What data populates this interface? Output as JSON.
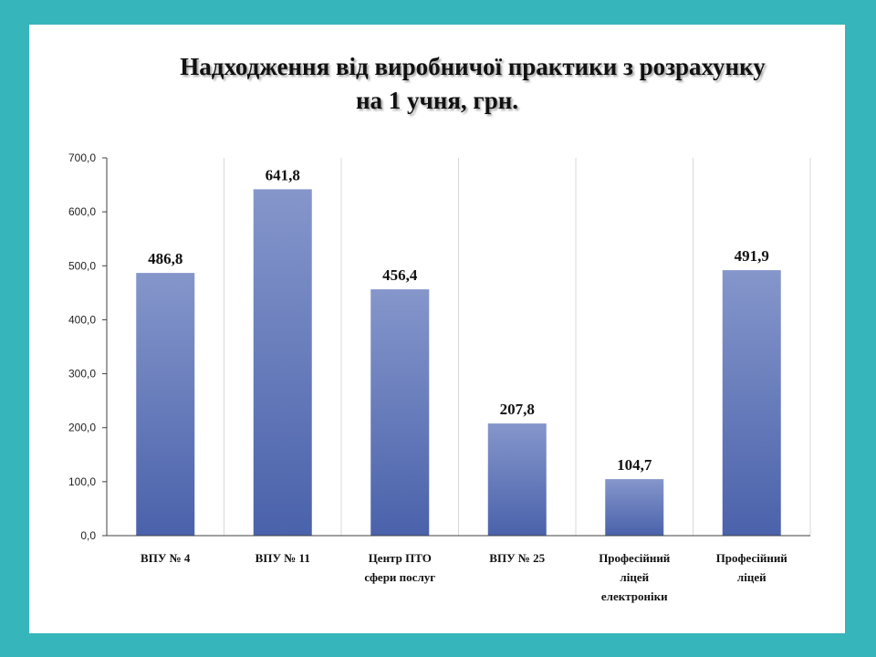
{
  "title": {
    "line1": "Надходження від виробничої практики з розрахунку",
    "line2": "на 1 учня, грн."
  },
  "chart_data": {
    "type": "bar",
    "categories": [
      [
        "ВПУ № 4"
      ],
      [
        "ВПУ № 11"
      ],
      [
        "Центр ПТО",
        "сфери послуг"
      ],
      [
        "ВПУ № 25"
      ],
      [
        "Професійний",
        "ліцей",
        "електроніки"
      ],
      [
        "Професійний",
        "ліцей"
      ]
    ],
    "values": [
      486.8,
      641.8,
      456.4,
      207.8,
      104.7,
      491.9
    ],
    "data_labels": [
      "486,8",
      "641,8",
      "456,4",
      "207,8",
      "104,7",
      "491,9"
    ],
    "y_ticks": [
      0,
      100,
      200,
      300,
      400,
      500,
      600,
      700
    ],
    "y_tick_labels": [
      "0,0",
      "100,0",
      "200,0",
      "300,0",
      "400,0",
      "500,0",
      "600,0",
      "700,0"
    ],
    "ylim": [
      0,
      700
    ],
    "grid": "vertical category dividers",
    "legend": "none",
    "colors": {
      "bar_top": "#8596cb",
      "bar_bottom": "#4a62ab",
      "grid": "#d9d9d9",
      "axis": "#404040"
    }
  }
}
